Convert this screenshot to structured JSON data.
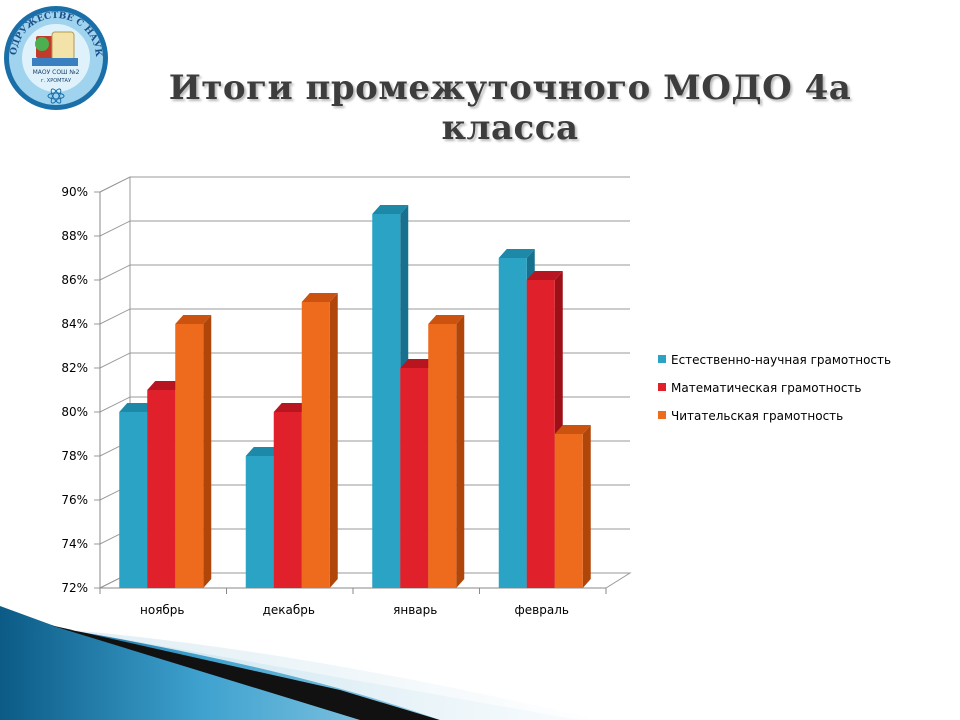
{
  "slide": {
    "title": "Итоги промежуточного  МОДО 4а класса",
    "logo_text": "В СОДРУЖЕСТВЕ С НАУКОЙ",
    "logo_small": "МАОУ СОШ №2",
    "logo_city": "г. ХРОМТАУ"
  },
  "chart_data": {
    "type": "bar",
    "categories": [
      "ноябрь",
      "декабрь",
      "январь",
      "февраль"
    ],
    "series": [
      {
        "name": "Естественно-научная  грамотность",
        "values": [
          80,
          78,
          89,
          87
        ],
        "color": "#2aa3c5",
        "side": "#17708d",
        "top": "#1d88a8"
      },
      {
        "name": "Математическая  грамотность",
        "values": [
          81,
          80,
          82,
          86
        ],
        "color": "#e0202a",
        "side": "#9e1018",
        "top": "#b81520"
      },
      {
        "name": "Читательская  грамотность",
        "values": [
          84,
          85,
          84,
          79
        ],
        "color": "#ee6a1c",
        "side": "#b0460a",
        "top": "#cc5210"
      }
    ],
    "y_ticks": [
      "72%",
      "74%",
      "76%",
      "78%",
      "80%",
      "82%",
      "84%",
      "86%",
      "88%",
      "90%"
    ],
    "ylim": [
      72,
      90
    ],
    "y_step": 2,
    "gridlines": true,
    "legend_position": "right"
  }
}
